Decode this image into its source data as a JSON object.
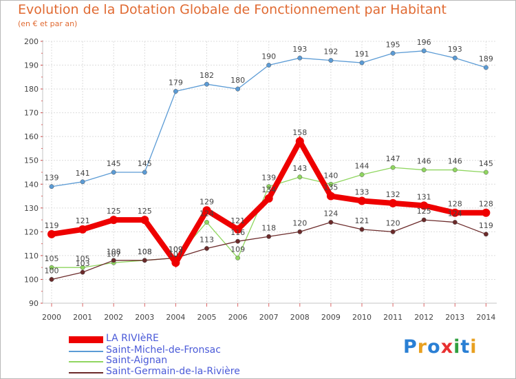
{
  "chart_data": {
    "type": "line",
    "title": "Evolution de la Dotation Globale de Fonctionnement par Habitant",
    "subtitle": "(en € et par an)",
    "xlabel": "",
    "ylabel": "",
    "ylim": [
      90,
      200
    ],
    "yticks": [
      90,
      100,
      110,
      120,
      130,
      140,
      150,
      160,
      170,
      180,
      190,
      200
    ],
    "categories": [
      "2000",
      "2001",
      "2002",
      "2003",
      "2004",
      "2005",
      "2006",
      "2007",
      "2008",
      "2009",
      "2010",
      "2011",
      "2012",
      "2013",
      "2014"
    ],
    "series": [
      {
        "name": "Saint-Michel-de-Fronsac",
        "color": "#5b9bd5",
        "values": [
          139,
          141,
          145,
          145,
          179,
          182,
          180,
          190,
          193,
          192,
          191,
          195,
          196,
          193,
          189
        ],
        "labels": [
          "139",
          "141",
          "145",
          "145",
          "179",
          "182",
          "180",
          "190",
          "193",
          "192",
          "191",
          "195",
          "196",
          "193",
          "189"
        ]
      },
      {
        "name": "Saint-Aignan",
        "color": "#8fd65f",
        "values": [
          105,
          105,
          107,
          108,
          109,
          124,
          109,
          139,
          143,
          140,
          144,
          147,
          146,
          146,
          145
        ],
        "labels": [
          "105",
          "105",
          "107",
          "108",
          "109",
          "124",
          "109",
          "139",
          "143",
          "140",
          "144",
          "147",
          "146",
          "146",
          "145"
        ]
      },
      {
        "name": "Saint-Germain-de-la-Rivière",
        "color": "#6b2a2a",
        "values": [
          100,
          103,
          108,
          108,
          109,
          113,
          116,
          118,
          120,
          124,
          121,
          120,
          125,
          124,
          119
        ],
        "labels": [
          "100",
          "103",
          "108",
          "108",
          "109",
          "113",
          "116",
          "118",
          "120",
          "124",
          "121",
          "120",
          "125",
          "124",
          "119"
        ]
      },
      {
        "name": "LA RIVIèRE",
        "color": "#ee0000",
        "values": [
          119,
          121,
          125,
          125,
          107,
          129,
          121,
          134,
          158,
          135,
          133,
          132,
          131,
          128,
          128
        ],
        "labels": [
          "119",
          "121",
          "125",
          "125",
          "107",
          "129",
          "121",
          "134",
          "158",
          "135",
          "133",
          "132",
          "131",
          "128",
          "128"
        ]
      }
    ],
    "legend": [
      "LA RIVIèRE",
      "Saint-Michel-de-Fronsac",
      "Saint-Aignan",
      "Saint-Germain-de-la-Rivière"
    ],
    "legend_position": "bottom-left"
  },
  "logo": {
    "text": "Proxiti",
    "colors": [
      "#2a7fd4",
      "#e8a020",
      "#2a7fd4",
      "#e83030",
      "#30a040",
      "#2a7fd4",
      "#e8a020"
    ]
  }
}
